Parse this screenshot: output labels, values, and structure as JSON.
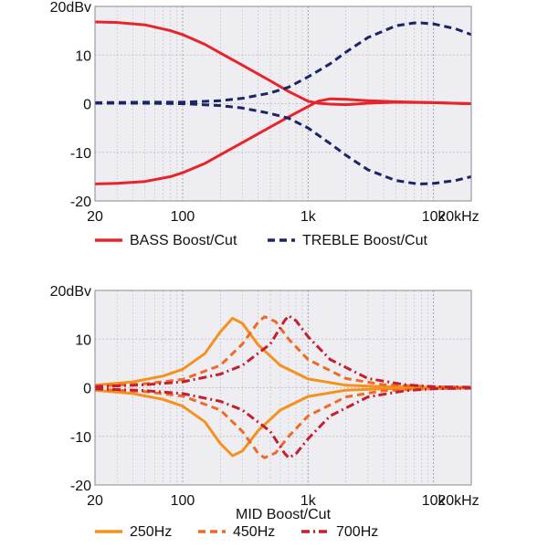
{
  "chart_data": [
    {
      "type": "line",
      "title": "",
      "xlabel": "",
      "ylabel": "",
      "x_scale": "log",
      "xlim": [
        20,
        20000
      ],
      "ylim": [
        -20,
        20
      ],
      "grid": true,
      "x_ticks": [
        {
          "value": 20,
          "label": "20"
        },
        {
          "value": 100,
          "label": "100"
        },
        {
          "value": 1000,
          "label": "1k"
        },
        {
          "value": 10000,
          "label": "10k"
        },
        {
          "value": 20000,
          "label": "20kHz"
        }
      ],
      "y_ticks": [
        {
          "value": 20,
          "label": "20dBv"
        },
        {
          "value": 10,
          "label": "10"
        },
        {
          "value": 0,
          "label": "0"
        },
        {
          "value": -10,
          "label": "-10"
        },
        {
          "value": -20,
          "label": "-20"
        }
      ],
      "legend_position": "bottom",
      "series": [
        {
          "name": "BASS Boost/Cut",
          "color": "#e8242b",
          "dash": "solid",
          "curves": [
            {
              "x": [
                20,
                30,
                50,
                80,
                100,
                150,
                200,
                300,
                500,
                700,
                1000,
                1200,
                1500,
                2000,
                3000,
                5000,
                10000,
                20000
              ],
              "y": [
                16.8,
                16.7,
                16.2,
                15.0,
                14.2,
                12.2,
                10.4,
                7.9,
                4.7,
                2.5,
                0.5,
                0.1,
                -0.1,
                -0.2,
                0.1,
                0.3,
                0.2,
                0.0
              ]
            },
            {
              "x": [
                20,
                30,
                50,
                80,
                100,
                150,
                200,
                300,
                500,
                700,
                1000,
                1200,
                1500,
                2000,
                3000,
                5000,
                10000,
                20000
              ],
              "y": [
                -16.5,
                -16.4,
                -16.0,
                -15.0,
                -14.2,
                -12.3,
                -10.5,
                -8.0,
                -4.8,
                -2.7,
                -0.6,
                0.5,
                1.0,
                0.9,
                0.6,
                0.4,
                0.2,
                0.0
              ]
            }
          ]
        },
        {
          "name": "TREBLE Boost/Cut",
          "color": "#1a2466",
          "dash": "dashed",
          "curves": [
            {
              "x": [
                20,
                50,
                100,
                200,
                300,
                500,
                700,
                1000,
                1500,
                2000,
                3000,
                5000,
                7000,
                8000,
                10000,
                15000,
                20000
              ],
              "y": [
                0.2,
                0.3,
                0.3,
                0.6,
                1.1,
                2.2,
                3.4,
                5.5,
                8.2,
                10.6,
                13.6,
                16.0,
                16.6,
                16.6,
                16.4,
                15.4,
                14.2
              ]
            },
            {
              "x": [
                20,
                50,
                100,
                200,
                300,
                500,
                700,
                1000,
                1500,
                2000,
                3000,
                5000,
                7000,
                8000,
                10000,
                15000,
                20000
              ],
              "y": [
                0.1,
                0.1,
                0.0,
                -0.4,
                -0.9,
                -2.0,
                -3.0,
                -5.0,
                -8.2,
                -10.6,
                -13.6,
                -15.8,
                -16.4,
                -16.5,
                -16.4,
                -15.8,
                -15.0
              ]
            }
          ]
        }
      ]
    },
    {
      "type": "line",
      "title": "",
      "xlabel": "MID Boost/Cut",
      "ylabel": "",
      "x_scale": "log",
      "xlim": [
        20,
        20000
      ],
      "ylim": [
        -20,
        20
      ],
      "grid": true,
      "x_ticks": [
        {
          "value": 20,
          "label": "20"
        },
        {
          "value": 100,
          "label": "100"
        },
        {
          "value": 1000,
          "label": "1k"
        },
        {
          "value": 10000,
          "label": "10k"
        },
        {
          "value": 20000,
          "label": "20kHz"
        }
      ],
      "y_ticks": [
        {
          "value": 20,
          "label": "20dBv"
        },
        {
          "value": 10,
          "label": "10"
        },
        {
          "value": 0,
          "label": "0"
        },
        {
          "value": -10,
          "label": "-10"
        },
        {
          "value": -20,
          "label": "-20"
        }
      ],
      "legend_position": "bottom",
      "series": [
        {
          "name": "250Hz",
          "color": "#f5921e",
          "dash": "solid",
          "curves": [
            {
              "x": [
                20,
                40,
                70,
                100,
                150,
                200,
                250,
                300,
                400,
                600,
                1000,
                2000,
                4000,
                10000,
                20000
              ],
              "y": [
                0.5,
                1.2,
                2.4,
                3.8,
                7.0,
                11.5,
                14.3,
                13.2,
                8.8,
                4.6,
                1.8,
                0.5,
                0.2,
                0.1,
                0.1
              ]
            },
            {
              "x": [
                20,
                40,
                70,
                100,
                150,
                200,
                250,
                300,
                400,
                600,
                1000,
                2000,
                4000,
                10000,
                20000
              ],
              "y": [
                -0.5,
                -1.2,
                -2.4,
                -3.8,
                -7.0,
                -11.5,
                -14.0,
                -13.0,
                -8.8,
                -4.6,
                -1.8,
                -0.5,
                -0.2,
                -0.1,
                -0.1
              ]
            }
          ]
        },
        {
          "name": "450Hz",
          "color": "#ef6a25",
          "dash": "dashed",
          "curves": [
            {
              "x": [
                20,
                50,
                100,
                200,
                300,
                400,
                450,
                550,
                700,
                1000,
                2000,
                4000,
                10000,
                20000
              ],
              "y": [
                0.3,
                0.8,
                1.7,
                4.6,
                9.0,
                13.5,
                14.6,
                13.6,
                10.0,
                5.8,
                1.9,
                0.6,
                0.2,
                0.1
              ]
            },
            {
              "x": [
                20,
                50,
                100,
                200,
                300,
                400,
                450,
                550,
                700,
                1000,
                2000,
                4000,
                10000,
                20000
              ],
              "y": [
                -0.3,
                -0.8,
                -1.7,
                -4.6,
                -9.0,
                -13.5,
                -14.4,
                -13.4,
                -10.0,
                -5.8,
                -1.9,
                -0.6,
                -0.2,
                -0.1
              ]
            }
          ]
        },
        {
          "name": "700Hz",
          "color": "#c41f2e",
          "dash": "dashdot",
          "curves": [
            {
              "x": [
                20,
                50,
                100,
                200,
                300,
                500,
                650,
                700,
                800,
                1000,
                1500,
                3000,
                6000,
                10000,
                20000
              ],
              "y": [
                0.2,
                0.6,
                1.2,
                2.8,
                4.6,
                9.0,
                13.8,
                14.8,
                13.8,
                10.5,
                5.8,
                1.9,
                0.6,
                0.2,
                0.1
              ]
            },
            {
              "x": [
                20,
                50,
                100,
                200,
                300,
                500,
                650,
                700,
                800,
                1000,
                1500,
                3000,
                6000,
                10000,
                20000
              ],
              "y": [
                -0.2,
                -0.6,
                -1.2,
                -2.8,
                -4.6,
                -9.0,
                -13.5,
                -14.4,
                -13.6,
                -10.5,
                -5.8,
                -1.9,
                -0.6,
                -0.2,
                -0.1
              ]
            }
          ]
        }
      ]
    }
  ]
}
